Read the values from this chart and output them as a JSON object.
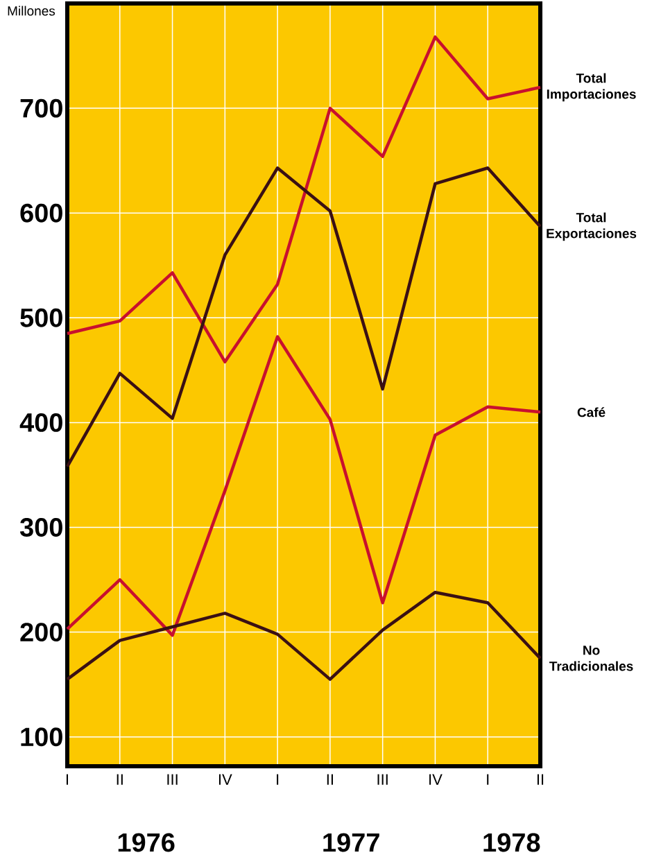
{
  "chart_data": {
    "type": "line",
    "ylabel": "Millones",
    "categories": [
      "I",
      "II",
      "III",
      "IV",
      "I",
      "II",
      "III",
      "IV",
      "I",
      "II"
    ],
    "series": [
      {
        "name": "Total Importaciones",
        "color": "#c8102e",
        "values": [
          485,
          497,
          543,
          458,
          532,
          700,
          654,
          768,
          709,
          720
        ]
      },
      {
        "name": "Total Exportaciones",
        "color": "#3a1014",
        "values": [
          358,
          447,
          404,
          560,
          643,
          602,
          432,
          628,
          643,
          587
        ]
      },
      {
        "name": "Café",
        "color": "#c8102e",
        "values": [
          203,
          250,
          197,
          335,
          482,
          403,
          228,
          388,
          415,
          410
        ]
      },
      {
        "name": "No Tradicionales",
        "color": "#3a1014",
        "values": [
          155,
          192,
          205,
          218,
          198,
          155,
          202,
          238,
          228,
          175
        ]
      }
    ],
    "ylim": [
      72,
      800
    ],
    "yticks": [
      100,
      200,
      300,
      400,
      500,
      600,
      700
    ],
    "grid": true,
    "legend": false,
    "marker": "none",
    "line_style": "solid",
    "annotations": [
      "1976",
      "1977",
      "1978"
    ]
  }
}
